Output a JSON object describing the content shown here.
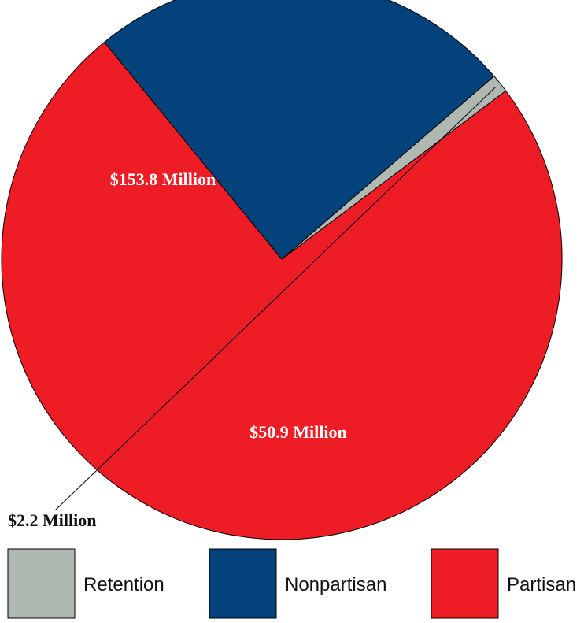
{
  "chart_data": {
    "type": "pie",
    "title": "",
    "unit": "Million",
    "slices": [
      {
        "name": "Partisan",
        "value": 153.8,
        "label": "$153.8 Million",
        "color": "#ee1c25"
      },
      {
        "name": "Nonpartisan",
        "value": 50.9,
        "label": "$50.9 Million",
        "color": "#03427a"
      },
      {
        "name": "Retention",
        "value": 2.2,
        "label": "$2.2 Million",
        "color": "#b0b9b1"
      }
    ],
    "legend": {
      "placement": "bottom",
      "order": [
        "Retention",
        "Nonpartisan",
        "Partisan"
      ]
    }
  }
}
